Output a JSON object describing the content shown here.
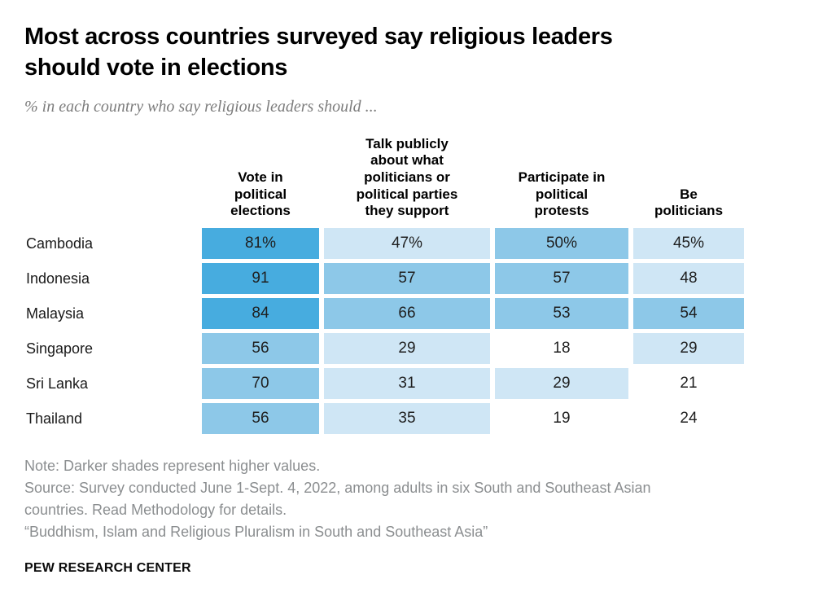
{
  "header": {
    "title": "Most across countries surveyed say religious leaders should vote in elections",
    "subtitle": "% in each country who say religious leaders should ..."
  },
  "chart_data": {
    "type": "heatmap",
    "title": "Most across countries surveyed say religious leaders should vote in elections",
    "subtitle": "% in each country who say religious leaders should ...",
    "unit": "%",
    "columns": [
      "Vote in political elections",
      "Talk publicly about what politicians or political parties they support",
      "Participate in political protests",
      "Be politicians"
    ],
    "rows": [
      {
        "country": "Cambodia",
        "values": [
          81,
          47,
          50,
          45
        ],
        "display": [
          "81%",
          "47%",
          "50%",
          "45%"
        ],
        "shades": [
          "dark",
          "light",
          "medium",
          "light"
        ]
      },
      {
        "country": "Indonesia",
        "values": [
          91,
          57,
          57,
          48
        ],
        "display": [
          "91",
          "57",
          "57",
          "48"
        ],
        "shades": [
          "dark",
          "medium",
          "medium",
          "light"
        ]
      },
      {
        "country": "Malaysia",
        "values": [
          84,
          66,
          53,
          54
        ],
        "display": [
          "84",
          "66",
          "53",
          "54"
        ],
        "shades": [
          "dark",
          "medium",
          "medium",
          "medium"
        ]
      },
      {
        "country": "Singapore",
        "values": [
          56,
          29,
          18,
          29
        ],
        "display": [
          "56",
          "29",
          "18",
          "29"
        ],
        "shades": [
          "medium",
          "light",
          "none",
          "light"
        ]
      },
      {
        "country": "Sri Lanka",
        "values": [
          70,
          31,
          29,
          21
        ],
        "display": [
          "70",
          "31",
          "29",
          "21"
        ],
        "shades": [
          "medium",
          "light",
          "light",
          "none"
        ]
      },
      {
        "country": "Thailand",
        "values": [
          56,
          35,
          19,
          24
        ],
        "display": [
          "56",
          "35",
          "19",
          "24"
        ],
        "shades": [
          "medium",
          "light",
          "none",
          "none"
        ]
      }
    ],
    "palette": {
      "dark": "#47acdf",
      "medium": "#8dc8e8",
      "light": "#cfe6f5",
      "none": "#ffffff"
    },
    "legend_note": "Darker shades represent higher values"
  },
  "footer": {
    "note": "Note: Darker shades represent higher values.",
    "source": "Source: Survey conducted June 1-Sept. 4, 2022, among adults in six South and Southeast Asian countries. Read Methodology for details.",
    "report_title": "“Buddhism, Islam and Religious Pluralism in South and Southeast Asia”",
    "brand": "PEW RESEARCH CENTER"
  }
}
